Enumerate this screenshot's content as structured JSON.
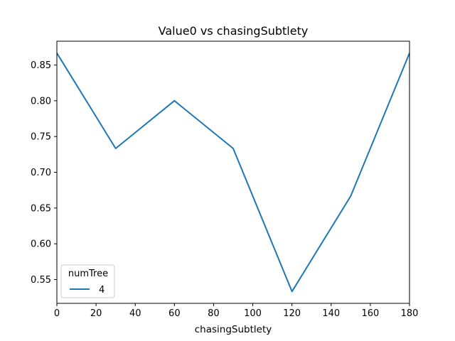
{
  "chart_data": {
    "type": "line",
    "title": "Value0 vs chasingSubtlety",
    "xlabel": "chasingSubtlety",
    "ylabel": "",
    "xlim": [
      0,
      180
    ],
    "ylim": [
      0.5167,
      0.8833
    ],
    "x_ticks": [
      0,
      20,
      40,
      60,
      80,
      100,
      120,
      140,
      160,
      180
    ],
    "y_ticks": [
      0.55,
      0.6,
      0.65,
      0.7,
      0.75,
      0.8,
      0.85
    ],
    "y_tick_labels": [
      "0.55",
      "0.60",
      "0.65",
      "0.70",
      "0.75",
      "0.80",
      "0.85"
    ],
    "grid": false,
    "legend": {
      "title": "numTree",
      "placement": "lower-left"
    },
    "series": [
      {
        "name": "4",
        "color": "#1f77b4",
        "x": [
          0,
          30,
          60,
          90,
          120,
          150,
          180
        ],
        "y": [
          0.8667,
          0.7333,
          0.8,
          0.7333,
          0.5333,
          0.6667,
          0.8667
        ]
      }
    ]
  }
}
